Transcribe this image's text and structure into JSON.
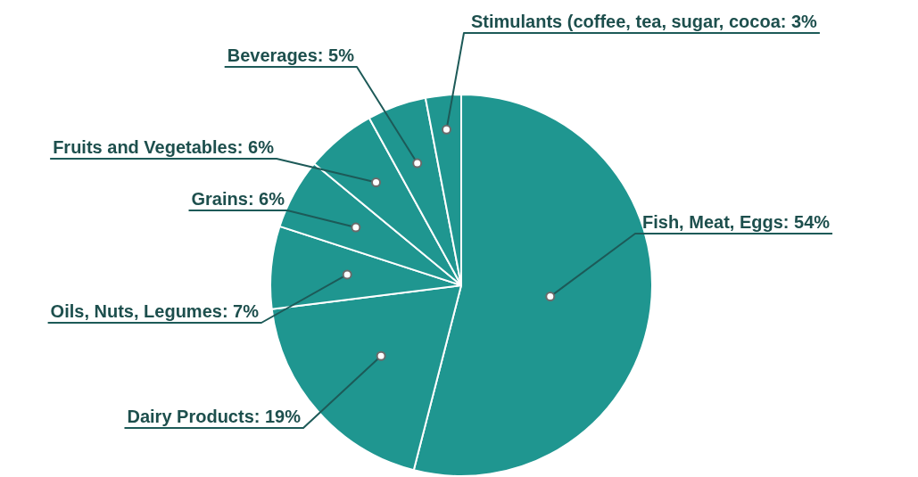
{
  "chart_data": {
    "type": "pie",
    "categories": [
      "Fish, Meat, Eggs",
      "Dairy Products",
      "Oils, Nuts, Legumes",
      "Grains",
      "Fruits and Vegetables",
      "Beverages",
      "Stimulants (coffee, tea, sugar, cocoa"
    ],
    "values": [
      54,
      19,
      7,
      6,
      6,
      5,
      3
    ],
    "value_labels": [
      "54%",
      "19%",
      "7%",
      "6%",
      "6%",
      "5%",
      "3%"
    ],
    "colors": [
      "#1f9690",
      "#1f9690",
      "#1f9690",
      "#1f9690",
      "#1f9690",
      "#1f9690",
      "#1f9690"
    ]
  }
}
